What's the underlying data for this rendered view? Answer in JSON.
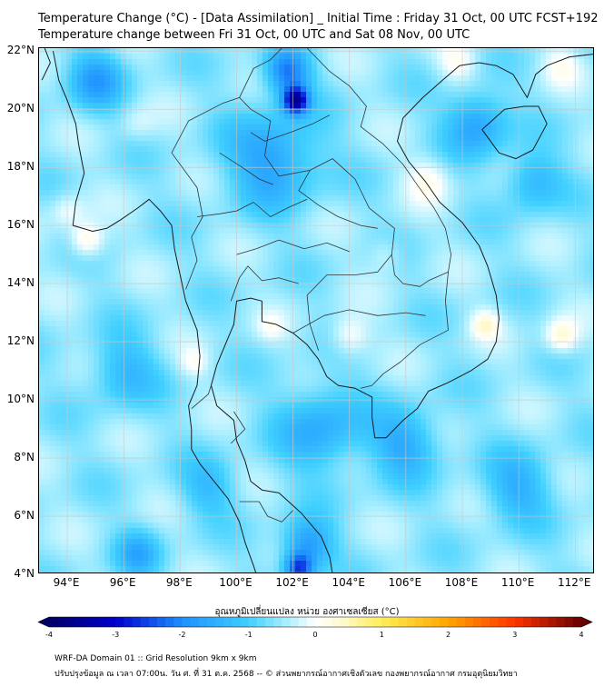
{
  "title_line1": "Temperature Change (°C) - [Data Assimilation] _ Initial Time : Friday 31 Oct, 00 UTC FCST+192",
  "title_line2": "Temperature change between Fri 31 Oct, 00 UTC and Sat 08 Nov, 00 UTC",
  "map": {
    "lon_range": [
      93,
      112.7
    ],
    "lat_range": [
      4,
      22.1
    ],
    "lat_ticks": [
      {
        "value": 22,
        "label": "22°N"
      },
      {
        "value": 20,
        "label": "20°N"
      },
      {
        "value": 18,
        "label": "18°N"
      },
      {
        "value": 16,
        "label": "16°N"
      },
      {
        "value": 14,
        "label": "14°N"
      },
      {
        "value": 12,
        "label": "12°N"
      },
      {
        "value": 10,
        "label": "10°N"
      },
      {
        "value": 8,
        "label": "8°N"
      },
      {
        "value": 6,
        "label": "6°N"
      },
      {
        "value": 4,
        "label": "4°N"
      }
    ],
    "lon_ticks": [
      {
        "value": 94,
        "label": "94°E"
      },
      {
        "value": 96,
        "label": "96°E"
      },
      {
        "value": 98,
        "label": "98°E"
      },
      {
        "value": 100,
        "label": "100°E"
      },
      {
        "value": 102,
        "label": "102°E"
      },
      {
        "value": 104,
        "label": "104°E"
      },
      {
        "value": 106,
        "label": "106°E"
      },
      {
        "value": 108,
        "label": "108°E"
      },
      {
        "value": 110,
        "label": "110°E"
      },
      {
        "value": 112,
        "label": "112°E"
      }
    ],
    "field_anomalies": [
      {
        "lon": 102.1,
        "lat": 20.3,
        "value": -2.6,
        "spread": 0.45
      },
      {
        "lon": 101.8,
        "lat": 21.3,
        "value": -1.6,
        "spread": 0.8
      },
      {
        "lon": 101.3,
        "lat": 18.3,
        "value": -1.2,
        "spread": 1.6
      },
      {
        "lon": 95.0,
        "lat": 21.0,
        "value": -1.1,
        "spread": 1.0
      },
      {
        "lon": 103.0,
        "lat": 9.0,
        "value": -1.0,
        "spread": 1.5
      },
      {
        "lon": 106.0,
        "lat": 8.5,
        "value": -1.0,
        "spread": 1.2
      },
      {
        "lon": 102.5,
        "lat": 5.0,
        "value": -1.3,
        "spread": 0.9
      },
      {
        "lon": 102.2,
        "lat": 4.2,
        "value": -1.8,
        "spread": 0.5
      },
      {
        "lon": 108.5,
        "lat": 19.5,
        "value": -1.2,
        "spread": 1.1
      },
      {
        "lon": 110.5,
        "lat": 17.5,
        "value": -0.9,
        "spread": 1.0
      },
      {
        "lon": 96.0,
        "lat": 11.0,
        "value": -0.8,
        "spread": 1.2
      },
      {
        "lon": 99.0,
        "lat": 7.0,
        "value": -0.7,
        "spread": 1.0
      },
      {
        "lon": 96.5,
        "lat": 4.7,
        "value": -0.9,
        "spread": 0.8
      },
      {
        "lon": 110.0,
        "lat": 7.0,
        "value": -0.9,
        "spread": 1.2
      },
      {
        "lon": 94.7,
        "lat": 15.5,
        "value": 0.9,
        "spread": 0.6
      },
      {
        "lon": 94.0,
        "lat": 16.5,
        "value": 0.5,
        "spread": 0.6
      },
      {
        "lon": 106.8,
        "lat": 17.6,
        "value": 0.6,
        "spread": 0.8
      },
      {
        "lon": 111.5,
        "lat": 12.2,
        "value": 0.9,
        "spread": 0.6
      },
      {
        "lon": 108.8,
        "lat": 12.6,
        "value": 0.8,
        "spread": 0.5
      },
      {
        "lon": 104.0,
        "lat": 12.2,
        "value": 0.7,
        "spread": 0.7
      },
      {
        "lon": 101.2,
        "lat": 12.5,
        "value": 0.4,
        "spread": 0.5
      },
      {
        "lon": 98.5,
        "lat": 11.3,
        "value": 0.5,
        "spread": 0.5
      },
      {
        "lon": 107.8,
        "lat": 21.6,
        "value": 0.6,
        "spread": 0.7
      },
      {
        "lon": 111.5,
        "lat": 21.5,
        "value": 0.5,
        "spread": 0.7
      },
      {
        "lon": 105.3,
        "lat": 15.0,
        "value": 0.4,
        "spread": 0.6
      },
      {
        "lon": 96.5,
        "lat": 19.5,
        "value": 0.3,
        "spread": 0.6
      }
    ],
    "field_base_value": -0.55,
    "colors": {
      "frame": "#000000",
      "grid": "#c8c8c8",
      "coastline": "#1a1a1a",
      "borders": "#333333"
    }
  },
  "colorbar": {
    "label": "อุณหภูมิเปลี่ยนแปลง หน่วย องศาเซลเซียส (°C)",
    "min": -4,
    "max": 4,
    "ticks": [
      "-4",
      "-3",
      "-2",
      "-1",
      "0",
      "1",
      "2",
      "3",
      "4"
    ],
    "stops": [
      {
        "v": -4,
        "color": "#000066"
      },
      {
        "v": -3,
        "color": "#0000cc"
      },
      {
        "v": -2,
        "color": "#1e90ff"
      },
      {
        "v": -1,
        "color": "#40d0ff"
      },
      {
        "v": -0.4,
        "color": "#b0f0ff"
      },
      {
        "v": 0,
        "color": "#ffffff"
      },
      {
        "v": 0.4,
        "color": "#fffacd"
      },
      {
        "v": 1,
        "color": "#ffee55"
      },
      {
        "v": 2,
        "color": "#ffa500"
      },
      {
        "v": 3,
        "color": "#ff3300"
      },
      {
        "v": 4,
        "color": "#660000"
      }
    ]
  },
  "footer_line1": "WRF-DA Domain 01 :: Grid Resolution 9km x 9km",
  "footer_line2": "ปรับปรุงข้อมูล ณ เวลา 07:00น. วัน ศ. ที่ 31 ต.ค. 2568 -- © ส่วนพยากรณ์อากาศเชิงตัวเลข กองพยากรณ์อากาศ กรมอุตุนิยมวิทยา"
}
